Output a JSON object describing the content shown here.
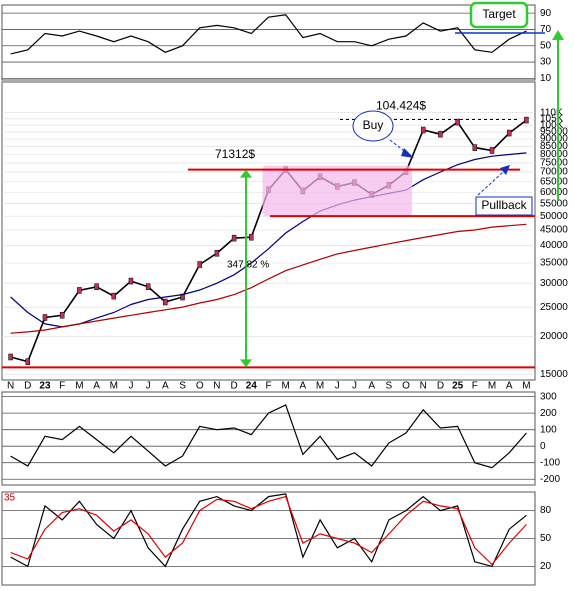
{
  "chart_data": [
    {
      "type": "line",
      "ylim": [
        8,
        100
      ],
      "yticks": [
        90,
        70,
        50,
        30,
        10
      ],
      "series": [
        {
          "color": "#000",
          "values": [
            40,
            45,
            65,
            62,
            68,
            62,
            55,
            62,
            55,
            42,
            50,
            72,
            75,
            72,
            65,
            85,
            88,
            60,
            65,
            55,
            55,
            50,
            58,
            62,
            78,
            68,
            72,
            45,
            42,
            58,
            68
          ]
        }
      ]
    },
    {
      "type": "line",
      "log_scale": true,
      "ylim": [
        14350,
        139000
      ],
      "yticks": [
        15000,
        20000,
        25000,
        30000,
        35000,
        40000,
        45000,
        50000,
        55000,
        60000,
        65000,
        70000,
        75000,
        80000,
        85000,
        90000,
        95000,
        {
          "value": 100000,
          "label": "100K"
        },
        {
          "value": 105000,
          "label": "105K"
        },
        {
          "value": 110000,
          "label": "110K"
        }
      ],
      "categories": [
        "N",
        "D",
        "23",
        "F",
        "M",
        "A",
        "M",
        "J",
        "J",
        "A",
        "S",
        "O",
        "N",
        "D",
        "24",
        "F",
        "M",
        "A",
        "M",
        "J",
        "J",
        "A",
        "S",
        "O",
        "N",
        "D",
        "25",
        "F",
        "M",
        "A",
        "M"
      ],
      "series": [
        {
          "color": "#000",
          "values": [
            17100,
            16500,
            23100,
            23500,
            28400,
            29200,
            27200,
            30500,
            29200,
            26000,
            27000,
            34600,
            37700,
            42300,
            42600,
            61100,
            71300,
            60600,
            67500,
            62700,
            64600,
            59000,
            63300,
            70200,
            96400,
            93400,
            102400,
            84300,
            82500,
            94200,
            104000
          ]
        },
        {
          "color": "#00007f",
          "values": [
            27000,
            24000,
            22000,
            21500,
            22000,
            23000,
            24000,
            25500,
            26500,
            27000,
            27500,
            28500,
            30000,
            32000,
            35000,
            39000,
            44000,
            48000,
            52000,
            54500,
            56500,
            58000,
            59500,
            61000,
            66000,
            70000,
            74000,
            77000,
            79000,
            80000,
            81000
          ]
        },
        {
          "color": "#b00000",
          "values": [
            20500,
            20700,
            21000,
            21500,
            22000,
            22500,
            23000,
            23500,
            24000,
            24500,
            25000,
            25800,
            26500,
            27500,
            29000,
            31000,
            33000,
            34500,
            36000,
            37500,
            38500,
            39500,
            40500,
            41500,
            42500,
            43500,
            44500,
            45000,
            46000,
            46500,
            47000
          ]
        }
      ],
      "resistance": {
        "value": 71312,
        "label": "71312$"
      },
      "target_level": {
        "value": 104424,
        "label": "104.424$"
      },
      "range_low": 50000,
      "base": 15800,
      "gain_label": "347.82 %",
      "target_note": "Target",
      "buy_note": "Buy",
      "pullback_note": "Pullback"
    },
    {
      "type": "line",
      "ylim": [
        -235,
        328
      ],
      "yticks": [
        300,
        200,
        100,
        0,
        -100,
        -200
      ],
      "series": [
        {
          "color": "#000",
          "values": [
            -60,
            -120,
            60,
            40,
            120,
            40,
            -40,
            60,
            -30,
            -120,
            -60,
            120,
            100,
            110,
            70,
            200,
            250,
            -50,
            60,
            -80,
            -40,
            -120,
            20,
            80,
            220,
            110,
            120,
            -100,
            -130,
            -40,
            80
          ]
        }
      ]
    },
    {
      "type": "line",
      "ylim": [
        0,
        100
      ],
      "yticks": [
        80,
        50,
        20
      ],
      "corner_label": "35",
      "series": [
        {
          "color": "#000",
          "values": [
            30,
            20,
            85,
            70,
            90,
            65,
            50,
            80,
            40,
            20,
            60,
            90,
            95,
            85,
            80,
            95,
            98,
            30,
            70,
            40,
            50,
            25,
            70,
            80,
            95,
            80,
            85,
            25,
            20,
            60,
            75
          ]
        },
        {
          "color": "#e00000",
          "values": [
            35,
            28,
            60,
            78,
            82,
            75,
            58,
            70,
            55,
            30,
            45,
            80,
            92,
            90,
            82,
            90,
            95,
            45,
            55,
            50,
            45,
            35,
            55,
            75,
            90,
            85,
            82,
            40,
            22,
            45,
            65
          ]
        }
      ]
    }
  ]
}
